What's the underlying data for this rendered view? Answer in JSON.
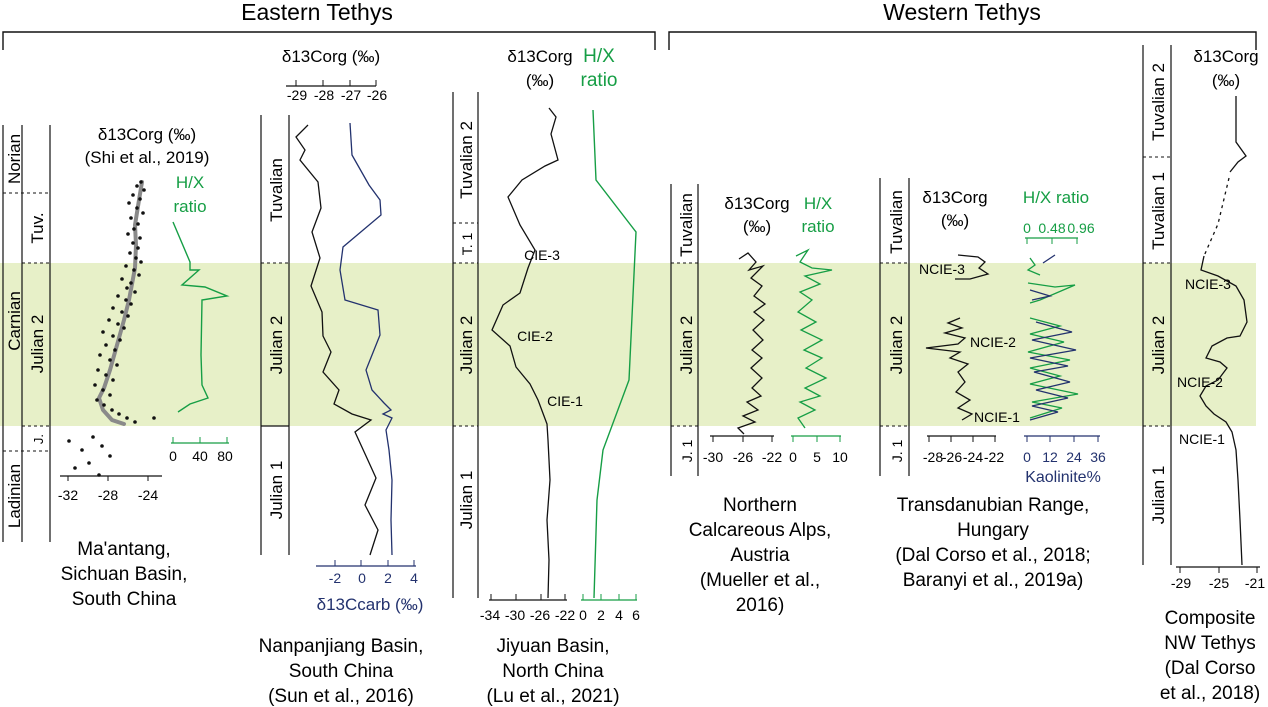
{
  "colors": {
    "band": "#e7f0c8",
    "green": "#169e45",
    "navy": "#23326e",
    "grey": "#8a8a8a",
    "black": "#111111"
  },
  "regions": {
    "east": "Eastern Tethys",
    "west": "Western Tethys"
  },
  "common": {
    "d13c_org": "δ13Corg",
    "permil": "(‰)",
    "d13c_org_permil": "δ13Corg (‰)",
    "hx_ratio": "H/X ratio",
    "hx_1": "H/X",
    "hx_2": "ratio",
    "carb": "δ13Ccarb (‰)",
    "kaolinite": "Kaolinite%"
  },
  "stages": {
    "norian": "Norian",
    "carnian": "Carnian",
    "ladinian": "Ladinian",
    "tuv": "Tuv.",
    "tuvalian": "Tuvalian",
    "tuvalian1": "Tuvalian 1",
    "tuvalian2": "Tuvalian 2",
    "t1": "T. 1",
    "julian1": "Julian 1",
    "julian2": "Julian 2",
    "j": "J.",
    "j1": "J. 1"
  },
  "sections": {
    "maantang": {
      "title": [
        "Ma'antang,",
        "Sichuan Basin,",
        "South China"
      ],
      "source": "(Shi et al., 2019)",
      "axis_ticks": [
        "-32",
        "-28",
        "-24"
      ],
      "hx_ticks": [
        "0",
        "40",
        "80"
      ]
    },
    "nanpanjiang": {
      "title": [
        "Nanpanjiang Basin,",
        "South China",
        "(Sun et al., 2016)"
      ],
      "org_ticks": [
        "-29",
        "-28",
        "-27",
        "-26"
      ],
      "carb_ticks": [
        "-2",
        "0",
        "2",
        "4"
      ]
    },
    "jiyuan": {
      "title": [
        "Jiyuan Basin,",
        "North China",
        "(Lu et al., 2021)"
      ],
      "org_ticks": [
        "-34",
        "-30",
        "-26",
        "-22"
      ],
      "hx_ticks": [
        "0",
        "2",
        "4",
        "6"
      ],
      "cie": [
        "CIE-3",
        "CIE-2",
        "CIE-1"
      ]
    },
    "alps": {
      "title": [
        "Northern",
        "Calcareous Alps,",
        "Austria",
        "(Mueller et al.,",
        "2016)"
      ],
      "org_ticks": [
        "-30",
        "-26",
        "-22"
      ],
      "hx_ticks": [
        "0",
        "5",
        "10"
      ]
    },
    "transdanubian": {
      "title": [
        "Transdanubian Range,",
        "Hungary",
        "(Dal Corso et al., 2018;",
        "Baranyi et al., 2019a)"
      ],
      "org_ticks": [
        "-28",
        "-26",
        "-24",
        "-22"
      ],
      "hx_ticks": [
        "0",
        "0.48",
        "0.96"
      ],
      "kao_ticks": [
        "0",
        "12",
        "24",
        "36"
      ],
      "ncie": [
        "NCIE-3",
        "NCIE-2",
        "NCIE-1"
      ]
    },
    "composite": {
      "title": [
        "Composite",
        "NW Tethys",
        "(Dal Corso",
        "et al., 2018)"
      ],
      "org_ticks": [
        "-29",
        "-25",
        "-21"
      ],
      "ncie": [
        "NCIE-3",
        "NCIE-2",
        "NCIE-1"
      ]
    }
  }
}
